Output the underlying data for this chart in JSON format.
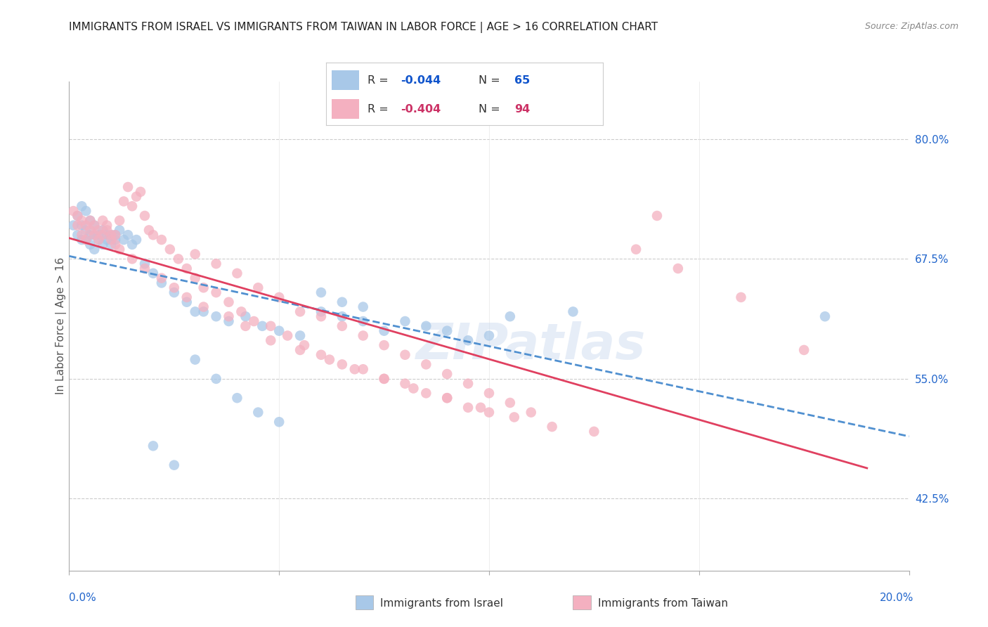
{
  "title": "IMMIGRANTS FROM ISRAEL VS IMMIGRANTS FROM TAIWAN IN LABOR FORCE | AGE > 16 CORRELATION CHART",
  "source": "Source: ZipAtlas.com",
  "ylabel": "In Labor Force | Age > 16",
  "ytick_labels": [
    "80.0%",
    "67.5%",
    "55.0%",
    "42.5%"
  ],
  "ytick_values": [
    0.8,
    0.675,
    0.55,
    0.425
  ],
  "xlim": [
    0.0,
    0.2
  ],
  "ylim": [
    0.35,
    0.86
  ],
  "watermark": "ZIPatlas",
  "israel_color": "#a8c8e8",
  "taiwan_color": "#f4b0c0",
  "israel_line_color": "#5090d0",
  "taiwan_line_color": "#e04060",
  "israel_R": "-0.044",
  "israel_N": "65",
  "taiwan_R": "-0.404",
  "taiwan_N": "94",
  "legend_text_color": "#1155cc",
  "legend_R_israel_color": "#1155cc",
  "legend_N_israel_color": "#1155cc",
  "legend_R_taiwan_color": "#cc3366",
  "legend_N_taiwan_color": "#cc3366",
  "israel_x": [
    0.001,
    0.002,
    0.002,
    0.003,
    0.003,
    0.003,
    0.004,
    0.004,
    0.004,
    0.005,
    0.005,
    0.005,
    0.006,
    0.006,
    0.006,
    0.007,
    0.007,
    0.008,
    0.008,
    0.009,
    0.009,
    0.01,
    0.01,
    0.011,
    0.011,
    0.012,
    0.013,
    0.014,
    0.015,
    0.016,
    0.018,
    0.02,
    0.022,
    0.025,
    0.028,
    0.03,
    0.032,
    0.035,
    0.038,
    0.042,
    0.046,
    0.05,
    0.055,
    0.06,
    0.065,
    0.07,
    0.075,
    0.08,
    0.085,
    0.09,
    0.095,
    0.1,
    0.06,
    0.065,
    0.07,
    0.03,
    0.035,
    0.04,
    0.045,
    0.05,
    0.02,
    0.025,
    0.105,
    0.12,
    0.18
  ],
  "israel_y": [
    0.71,
    0.72,
    0.7,
    0.73,
    0.71,
    0.695,
    0.725,
    0.705,
    0.695,
    0.715,
    0.7,
    0.69,
    0.71,
    0.7,
    0.685,
    0.7,
    0.695,
    0.705,
    0.69,
    0.7,
    0.695,
    0.7,
    0.69,
    0.695,
    0.7,
    0.705,
    0.695,
    0.7,
    0.69,
    0.695,
    0.67,
    0.66,
    0.65,
    0.64,
    0.63,
    0.62,
    0.62,
    0.615,
    0.61,
    0.615,
    0.605,
    0.6,
    0.595,
    0.62,
    0.615,
    0.61,
    0.6,
    0.61,
    0.605,
    0.6,
    0.59,
    0.595,
    0.64,
    0.63,
    0.625,
    0.57,
    0.55,
    0.53,
    0.515,
    0.505,
    0.48,
    0.46,
    0.615,
    0.62,
    0.615
  ],
  "taiwan_x": [
    0.001,
    0.002,
    0.002,
    0.003,
    0.003,
    0.004,
    0.004,
    0.005,
    0.005,
    0.006,
    0.006,
    0.007,
    0.007,
    0.008,
    0.008,
    0.009,
    0.009,
    0.01,
    0.01,
    0.011,
    0.011,
    0.012,
    0.013,
    0.014,
    0.015,
    0.016,
    0.017,
    0.018,
    0.019,
    0.02,
    0.022,
    0.024,
    0.026,
    0.028,
    0.03,
    0.032,
    0.035,
    0.038,
    0.041,
    0.044,
    0.048,
    0.052,
    0.056,
    0.06,
    0.065,
    0.07,
    0.075,
    0.08,
    0.085,
    0.09,
    0.095,
    0.1,
    0.03,
    0.035,
    0.04,
    0.045,
    0.05,
    0.055,
    0.06,
    0.065,
    0.07,
    0.075,
    0.08,
    0.085,
    0.09,
    0.095,
    0.1,
    0.105,
    0.11,
    0.012,
    0.015,
    0.018,
    0.022,
    0.025,
    0.028,
    0.032,
    0.038,
    0.042,
    0.048,
    0.055,
    0.062,
    0.068,
    0.075,
    0.082,
    0.09,
    0.098,
    0.106,
    0.115,
    0.125,
    0.135,
    0.145,
    0.16,
    0.175,
    0.14
  ],
  "taiwan_y": [
    0.725,
    0.72,
    0.71,
    0.715,
    0.7,
    0.71,
    0.695,
    0.705,
    0.715,
    0.7,
    0.71,
    0.705,
    0.695,
    0.715,
    0.7,
    0.71,
    0.705,
    0.7,
    0.695,
    0.7,
    0.69,
    0.715,
    0.735,
    0.75,
    0.73,
    0.74,
    0.745,
    0.72,
    0.705,
    0.7,
    0.695,
    0.685,
    0.675,
    0.665,
    0.655,
    0.645,
    0.64,
    0.63,
    0.62,
    0.61,
    0.605,
    0.595,
    0.585,
    0.575,
    0.565,
    0.56,
    0.55,
    0.545,
    0.535,
    0.53,
    0.52,
    0.515,
    0.68,
    0.67,
    0.66,
    0.645,
    0.635,
    0.62,
    0.615,
    0.605,
    0.595,
    0.585,
    0.575,
    0.565,
    0.555,
    0.545,
    0.535,
    0.525,
    0.515,
    0.685,
    0.675,
    0.665,
    0.655,
    0.645,
    0.635,
    0.625,
    0.615,
    0.605,
    0.59,
    0.58,
    0.57,
    0.56,
    0.55,
    0.54,
    0.53,
    0.52,
    0.51,
    0.5,
    0.495,
    0.685,
    0.665,
    0.635,
    0.58,
    0.72
  ]
}
